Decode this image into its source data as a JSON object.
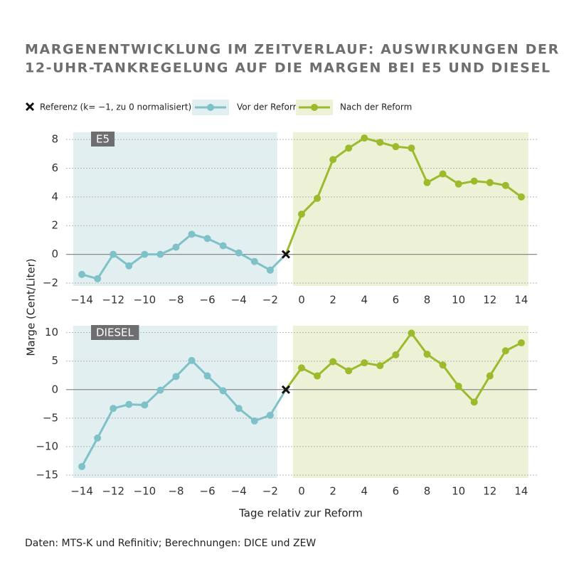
{
  "title_lines": [
    "MARGENENTWICKLUNG IM ZEITVERLAUF: AUSWIRKUNGEN DER",
    "12-UHR-TANKREGELUNG AUF DIE MARGEN BEI E5 UND DIESEL"
  ],
  "y_label": "Marge (Cent/Liter)",
  "x_label": "Tage relativ zur Reform",
  "source": "Daten: MTS-K und Refinitiv; Berechnungen: DICE und ZEW",
  "chart_data": [
    {
      "type": "line",
      "panel_label": "E5",
      "grid": true,
      "xlim": [
        -15,
        15
      ],
      "xticks": [
        {
          "value": -14,
          "label": "−14"
        },
        {
          "value": -12,
          "label": "−12"
        },
        {
          "value": -10,
          "label": "−10"
        },
        {
          "value": -8,
          "label": "−8"
        },
        {
          "value": -6,
          "label": "−6"
        },
        {
          "value": -4,
          "label": "−4"
        },
        {
          "value": -2,
          "label": "−2"
        },
        0,
        2,
        4,
        6,
        8,
        10,
        12,
        14
      ],
      "ylim": [
        -2.2,
        8.5
      ],
      "yticks": [
        {
          "value": -2,
          "label": "−2"
        },
        0,
        2,
        4,
        6,
        8
      ],
      "reference": {
        "name": "Referenz (k= −1, zu 0 normalisiert)",
        "x": -1,
        "value": 0
      },
      "series": [
        {
          "name": "Vor der Reform",
          "color": "#7fc1c8",
          "background": "#e2eff1",
          "x": [
            -14,
            -13,
            -12,
            -11,
            -10,
            -9,
            -8,
            -7,
            -6,
            -5,
            -4,
            -3,
            -2
          ],
          "values": [
            -1.4,
            -1.7,
            0.0,
            -0.8,
            0.0,
            0.0,
            0.5,
            1.4,
            1.1,
            0.6,
            0.1,
            -0.5,
            -1.1
          ]
        },
        {
          "name": "Nach der Reform",
          "color": "#9cbb2c",
          "background": "#edf1d6",
          "x": [
            0,
            1,
            2,
            3,
            4,
            5,
            6,
            7,
            8,
            9,
            10,
            11,
            12,
            13,
            14
          ],
          "values": [
            2.8,
            3.9,
            6.6,
            7.4,
            8.1,
            7.8,
            7.5,
            7.4,
            5.0,
            5.6,
            4.9,
            5.1,
            5.0,
            4.8,
            4.0
          ]
        }
      ]
    },
    {
      "type": "line",
      "panel_label": "DIESEL",
      "grid": true,
      "xlim": [
        -15,
        15
      ],
      "xticks": [
        {
          "value": -14,
          "label": "−14"
        },
        {
          "value": -12,
          "label": "−12"
        },
        {
          "value": -10,
          "label": "−10"
        },
        {
          "value": -8,
          "label": "−8"
        },
        {
          "value": -6,
          "label": "−6"
        },
        {
          "value": -4,
          "label": "−4"
        },
        {
          "value": -2,
          "label": "−2"
        },
        0,
        2,
        4,
        6,
        8,
        10,
        12,
        14
      ],
      "ylim": [
        -15.5,
        11.2
      ],
      "yticks": [
        {
          "value": -15,
          "label": "−15"
        },
        {
          "value": -10,
          "label": "−10"
        },
        {
          "value": -5,
          "label": "−5"
        },
        0,
        5,
        10
      ],
      "reference": {
        "x": -1,
        "value": 0
      },
      "series": [
        {
          "color": "#7fc1c8",
          "background": "#e2eff1",
          "x": [
            -14,
            -13,
            -12,
            -11,
            -10,
            -9,
            -8,
            -7,
            -6,
            -5,
            -4,
            -3,
            -2
          ],
          "values": [
            -13.5,
            -8.5,
            -3.3,
            -2.6,
            -2.7,
            -0.1,
            2.3,
            5.1,
            2.4,
            -0.2,
            -3.3,
            -5.5,
            -4.5
          ]
        },
        {
          "color": "#9cbb2c",
          "background": "#edf1d6",
          "x": [
            0,
            1,
            2,
            3,
            4,
            5,
            6,
            7,
            8,
            9,
            10,
            11,
            12,
            13,
            14
          ],
          "values": [
            3.8,
            2.4,
            4.9,
            3.3,
            4.7,
            4.2,
            6.1,
            9.9,
            6.2,
            4.3,
            0.6,
            -2.2,
            2.4,
            6.8,
            8.2
          ]
        }
      ]
    }
  ]
}
